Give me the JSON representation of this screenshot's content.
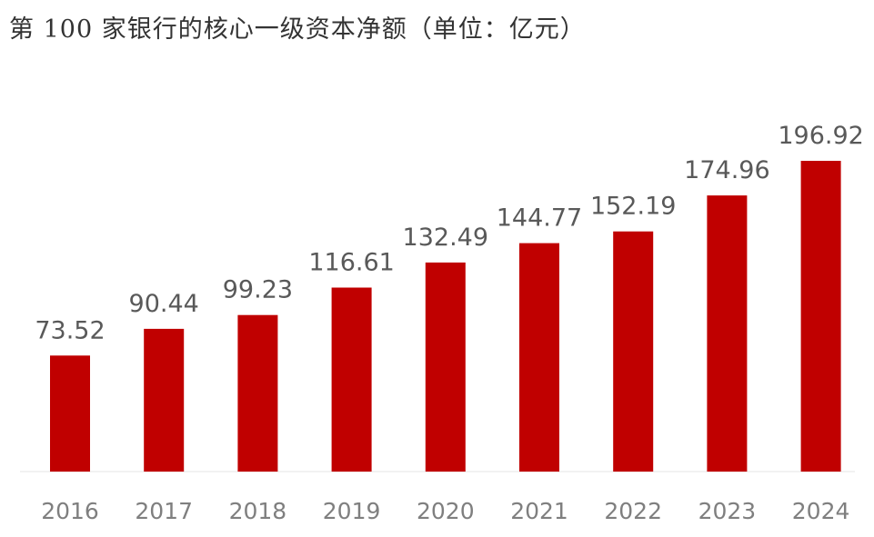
{
  "chart_data": {
    "type": "bar",
    "title": "第 100 家银行的核心一级资本净额（单位：亿元）",
    "categories": [
      "2016",
      "2017",
      "2018",
      "2019",
      "2020",
      "2021",
      "2022",
      "2023",
      "2024"
    ],
    "values": [
      73.52,
      90.44,
      99.23,
      116.61,
      132.49,
      144.77,
      152.19,
      174.96,
      196.92
    ],
    "value_labels": [
      "73.52",
      "90.44",
      "99.23",
      "116.61",
      "132.49",
      "144.77",
      "152.19",
      "174.96",
      "196.92"
    ],
    "xlabel": "",
    "ylabel": "",
    "ylim": [
      0,
      200
    ],
    "bar_color": "#c00000",
    "grid": false,
    "legend": "none"
  }
}
